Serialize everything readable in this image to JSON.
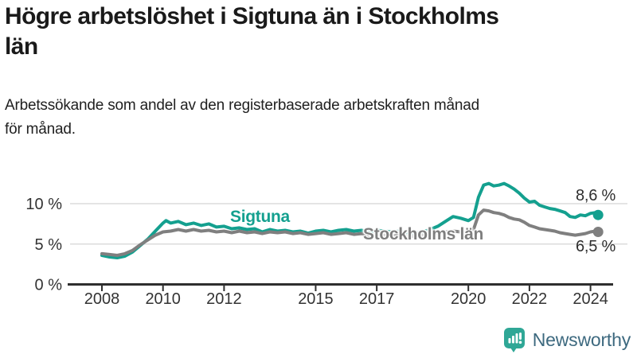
{
  "header": {
    "title_line1": "Högre arbetslöshet i Sigtuna än i Stockholms",
    "title_line2": "län",
    "subtitle_line1": "Arbetssökande som andel av den registerbaserade arbetskraften månad",
    "subtitle_line2": "för månad."
  },
  "chart_data": {
    "type": "line",
    "title": "Högre arbetslöshet i Sigtuna än i Stockholms län",
    "caption": "Arbetssökande som andel av den registerbaserade arbetskraften månad för månad.",
    "grid": "horizontal",
    "x_axis": {
      "ticks": [
        2008,
        2010,
        2012,
        2015,
        2017,
        2020,
        2022,
        2024
      ],
      "range": [
        2008,
        2024.3
      ]
    },
    "y_axis": {
      "ticks": [
        0,
        5,
        10
      ],
      "tick_suffix": " %",
      "range": [
        0,
        13
      ]
    },
    "colors": {
      "sigtuna": "#14a08f",
      "stockholm": "#7f7f7f",
      "grid": "#dcdcdc",
      "axis": "#2e2e2e",
      "tick_text": "#333333"
    },
    "series": [
      {
        "name": "Sigtuna",
        "color_key": "sigtuna",
        "end_label": "8,6 %",
        "end_value": 8.6,
        "points": [
          [
            2008.0,
            3.6
          ],
          [
            2008.25,
            3.4
          ],
          [
            2008.5,
            3.3
          ],
          [
            2008.75,
            3.5
          ],
          [
            2009.0,
            4.0
          ],
          [
            2009.25,
            4.8
          ],
          [
            2009.5,
            5.6
          ],
          [
            2009.75,
            6.6
          ],
          [
            2010.0,
            7.6
          ],
          [
            2010.1,
            7.9
          ],
          [
            2010.25,
            7.6
          ],
          [
            2010.5,
            7.8
          ],
          [
            2010.75,
            7.4
          ],
          [
            2011.0,
            7.6
          ],
          [
            2011.25,
            7.3
          ],
          [
            2011.5,
            7.5
          ],
          [
            2011.75,
            7.1
          ],
          [
            2012.0,
            7.2
          ],
          [
            2012.25,
            6.9
          ],
          [
            2012.5,
            7.0
          ],
          [
            2012.75,
            6.8
          ],
          [
            2013.0,
            6.9
          ],
          [
            2013.25,
            6.5
          ],
          [
            2013.5,
            6.8
          ],
          [
            2013.75,
            6.6
          ],
          [
            2014.0,
            6.7
          ],
          [
            2014.25,
            6.5
          ],
          [
            2014.5,
            6.6
          ],
          [
            2014.75,
            6.35
          ],
          [
            2015.0,
            6.6
          ],
          [
            2015.25,
            6.7
          ],
          [
            2015.5,
            6.5
          ],
          [
            2015.75,
            6.7
          ],
          [
            2016.0,
            6.8
          ],
          [
            2016.25,
            6.6
          ],
          [
            2016.5,
            6.7
          ],
          [
            2016.75,
            6.5
          ],
          [
            2017.0,
            6.7
          ],
          [
            2017.25,
            6.6
          ],
          [
            2017.5,
            6.5
          ],
          [
            2017.75,
            6.6
          ],
          [
            2018.0,
            6.4
          ],
          [
            2018.25,
            6.3
          ],
          [
            2018.5,
            6.5
          ],
          [
            2018.75,
            6.8
          ],
          [
            2019.0,
            7.2
          ],
          [
            2019.25,
            7.8
          ],
          [
            2019.5,
            8.4
          ],
          [
            2019.75,
            8.2
          ],
          [
            2020.0,
            7.9
          ],
          [
            2020.17,
            8.3
          ],
          [
            2020.33,
            10.8
          ],
          [
            2020.5,
            12.3
          ],
          [
            2020.67,
            12.5
          ],
          [
            2020.83,
            12.2
          ],
          [
            2021.0,
            12.3
          ],
          [
            2021.17,
            12.5
          ],
          [
            2021.33,
            12.2
          ],
          [
            2021.5,
            11.8
          ],
          [
            2021.67,
            11.3
          ],
          [
            2021.83,
            10.7
          ],
          [
            2022.0,
            10.2
          ],
          [
            2022.17,
            10.3
          ],
          [
            2022.33,
            9.8
          ],
          [
            2022.5,
            9.6
          ],
          [
            2022.67,
            9.4
          ],
          [
            2022.83,
            9.3
          ],
          [
            2023.0,
            9.1
          ],
          [
            2023.17,
            8.9
          ],
          [
            2023.33,
            8.4
          ],
          [
            2023.5,
            8.3
          ],
          [
            2023.67,
            8.6
          ],
          [
            2023.83,
            8.5
          ],
          [
            2024.0,
            8.8
          ],
          [
            2024.17,
            8.9
          ],
          [
            2024.25,
            8.6
          ]
        ]
      },
      {
        "name": "Stockholms län",
        "color_key": "stockholm",
        "end_label": "6,5 %",
        "end_value": 6.5,
        "points": [
          [
            2008.0,
            3.8
          ],
          [
            2008.25,
            3.7
          ],
          [
            2008.5,
            3.6
          ],
          [
            2008.75,
            3.8
          ],
          [
            2009.0,
            4.2
          ],
          [
            2009.25,
            4.9
          ],
          [
            2009.5,
            5.5
          ],
          [
            2009.75,
            6.1
          ],
          [
            2010.0,
            6.5
          ],
          [
            2010.25,
            6.6
          ],
          [
            2010.5,
            6.8
          ],
          [
            2010.75,
            6.6
          ],
          [
            2011.0,
            6.8
          ],
          [
            2011.25,
            6.6
          ],
          [
            2011.5,
            6.7
          ],
          [
            2011.75,
            6.5
          ],
          [
            2012.0,
            6.6
          ],
          [
            2012.25,
            6.4
          ],
          [
            2012.5,
            6.6
          ],
          [
            2012.75,
            6.4
          ],
          [
            2013.0,
            6.5
          ],
          [
            2013.25,
            6.3
          ],
          [
            2013.5,
            6.5
          ],
          [
            2013.75,
            6.4
          ],
          [
            2014.0,
            6.5
          ],
          [
            2014.25,
            6.3
          ],
          [
            2014.5,
            6.4
          ],
          [
            2014.75,
            6.2
          ],
          [
            2015.0,
            6.3
          ],
          [
            2015.25,
            6.4
          ],
          [
            2015.5,
            6.2
          ],
          [
            2015.75,
            6.3
          ],
          [
            2016.0,
            6.4
          ],
          [
            2016.25,
            6.2
          ],
          [
            2016.5,
            6.3
          ],
          [
            2016.75,
            6.1
          ],
          [
            2017.0,
            6.2
          ],
          [
            2017.25,
            6.1
          ],
          [
            2017.5,
            6.0
          ],
          [
            2017.75,
            6.1
          ],
          [
            2018.0,
            5.9
          ],
          [
            2018.25,
            6.0
          ],
          [
            2018.5,
            6.1
          ],
          [
            2018.75,
            6.2
          ],
          [
            2019.0,
            6.3
          ],
          [
            2019.25,
            6.5
          ],
          [
            2019.5,
            6.6
          ],
          [
            2019.75,
            6.5
          ],
          [
            2020.0,
            6.4
          ],
          [
            2020.17,
            6.8
          ],
          [
            2020.33,
            8.6
          ],
          [
            2020.5,
            9.2
          ],
          [
            2020.67,
            9.1
          ],
          [
            2020.83,
            8.9
          ],
          [
            2021.0,
            8.8
          ],
          [
            2021.17,
            8.6
          ],
          [
            2021.33,
            8.3
          ],
          [
            2021.5,
            8.1
          ],
          [
            2021.67,
            8.0
          ],
          [
            2021.83,
            7.7
          ],
          [
            2022.0,
            7.3
          ],
          [
            2022.17,
            7.1
          ],
          [
            2022.33,
            6.9
          ],
          [
            2022.5,
            6.8
          ],
          [
            2022.67,
            6.7
          ],
          [
            2022.83,
            6.6
          ],
          [
            2023.0,
            6.4
          ],
          [
            2023.17,
            6.3
          ],
          [
            2023.33,
            6.2
          ],
          [
            2023.5,
            6.1
          ],
          [
            2023.67,
            6.2
          ],
          [
            2023.83,
            6.3
          ],
          [
            2024.0,
            6.5
          ],
          [
            2024.17,
            6.6
          ],
          [
            2024.25,
            6.5
          ]
        ]
      }
    ]
  },
  "footer": {
    "brand": "Newsworthy",
    "brand_text_color": "#3d697f",
    "icon": "newsworthy-bar-chart-bubble-icon",
    "icon_color": "#2fa796"
  }
}
